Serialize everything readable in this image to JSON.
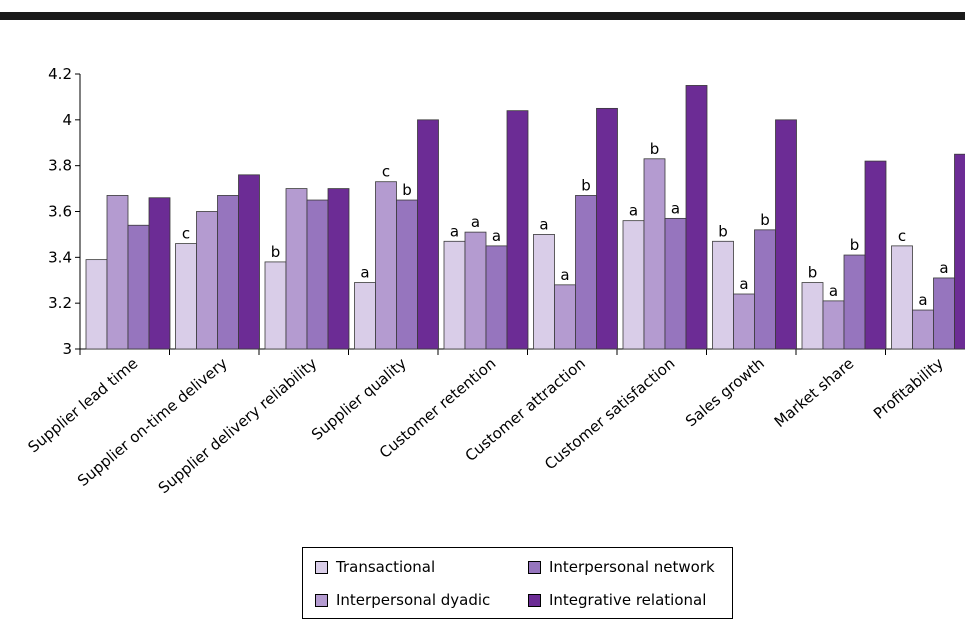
{
  "chart_data": {
    "type": "bar",
    "title": "",
    "xlabel": "",
    "ylabel": "",
    "ylim": [
      3,
      4.2
    ],
    "yticks": [
      "3",
      "3.2",
      "3.4",
      "3.6",
      "3.8",
      "4",
      "4.2"
    ],
    "grid": false,
    "legend_position": "bottom-center",
    "categories": [
      "Supplier lead time",
      "Supplier on-time delivery",
      "Supplier delivery reliability",
      "Supplier quality",
      "Customer retention",
      "Customer attraction",
      "Customer satisfaction",
      "Sales growth",
      "Market share",
      "Profitability"
    ],
    "series": [
      {
        "name": "Transactional",
        "color": "#d9cde8",
        "values": [
          3.39,
          3.46,
          3.38,
          3.29,
          3.47,
          3.5,
          3.56,
          3.47,
          3.29,
          3.45
        ],
        "labels": [
          "",
          "c",
          "b",
          "a",
          "a",
          "a",
          "a",
          "b",
          "b",
          "c"
        ]
      },
      {
        "name": "Interpersonal dyadic",
        "color": "#b49bd0",
        "values": [
          3.67,
          3.6,
          3.7,
          3.73,
          3.51,
          3.28,
          3.83,
          3.24,
          3.21,
          3.17
        ],
        "labels": [
          "",
          "",
          "",
          "c",
          "a",
          "a",
          "b",
          "a",
          "a",
          "a"
        ]
      },
      {
        "name": "Interpersonal network",
        "color": "#9675be",
        "values": [
          3.54,
          3.67,
          3.65,
          3.65,
          3.45,
          3.67,
          3.57,
          3.52,
          3.41,
          3.31
        ],
        "labels": [
          "",
          "",
          "",
          "b",
          "a",
          "b",
          "a",
          "b",
          "b",
          "a"
        ]
      },
      {
        "name": "Integrative relational",
        "color": "#6c2c95",
        "values": [
          3.66,
          3.76,
          3.7,
          4.0,
          4.04,
          4.05,
          4.15,
          4.0,
          3.82,
          3.85
        ],
        "labels": [
          "",
          "",
          "",
          "",
          "",
          "",
          "",
          "",
          "",
          ""
        ]
      }
    ]
  }
}
